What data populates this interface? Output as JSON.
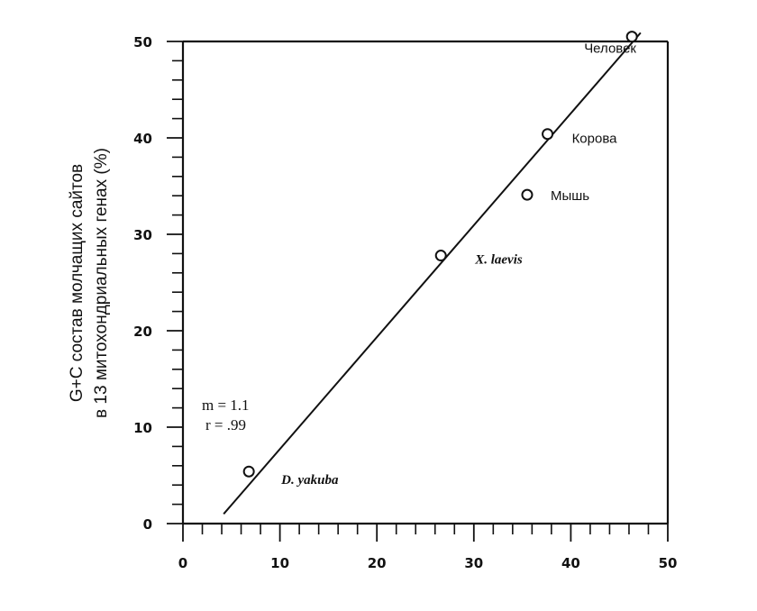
{
  "chart_data": {
    "type": "scatter",
    "title": "",
    "xlabel": "",
    "ylabel_lines": [
      "G+C состав молчащих сайтов",
      "в 13 митохондриальных генах (%)"
    ],
    "xlim": [
      0,
      50
    ],
    "ylim": [
      0,
      50
    ],
    "x_ticks": [
      0,
      10,
      20,
      30,
      40,
      50
    ],
    "y_ticks": [
      0,
      10,
      20,
      30,
      40,
      50
    ],
    "x_ticks_labels": [
      "0",
      "10",
      "20",
      "30",
      "40",
      "50"
    ],
    "y_ticks_labels": [
      "0",
      "10",
      "20",
      "30",
      "40",
      "50"
    ],
    "points": [
      {
        "label": "D. yakuba",
        "x": 6.8,
        "y": 5.4,
        "style": "italic"
      },
      {
        "label": "X. laevis",
        "x": 26.6,
        "y": 27.8,
        "style": "italic"
      },
      {
        "label": "Мышь",
        "x": 35.5,
        "y": 34.1,
        "style": "sans"
      },
      {
        "label": "Корова",
        "x": 37.6,
        "y": 40.4,
        "style": "sans"
      },
      {
        "label": "Человек",
        "x": 46.3,
        "y": 50.5,
        "style": "sans"
      }
    ],
    "fit_line": {
      "x1": 4.2,
      "y1": 1.0,
      "x2": 47.2,
      "y2": 50.9
    },
    "stats": [
      "m = 1.1",
      "r = .99"
    ],
    "grid": false,
    "legend": "none"
  }
}
